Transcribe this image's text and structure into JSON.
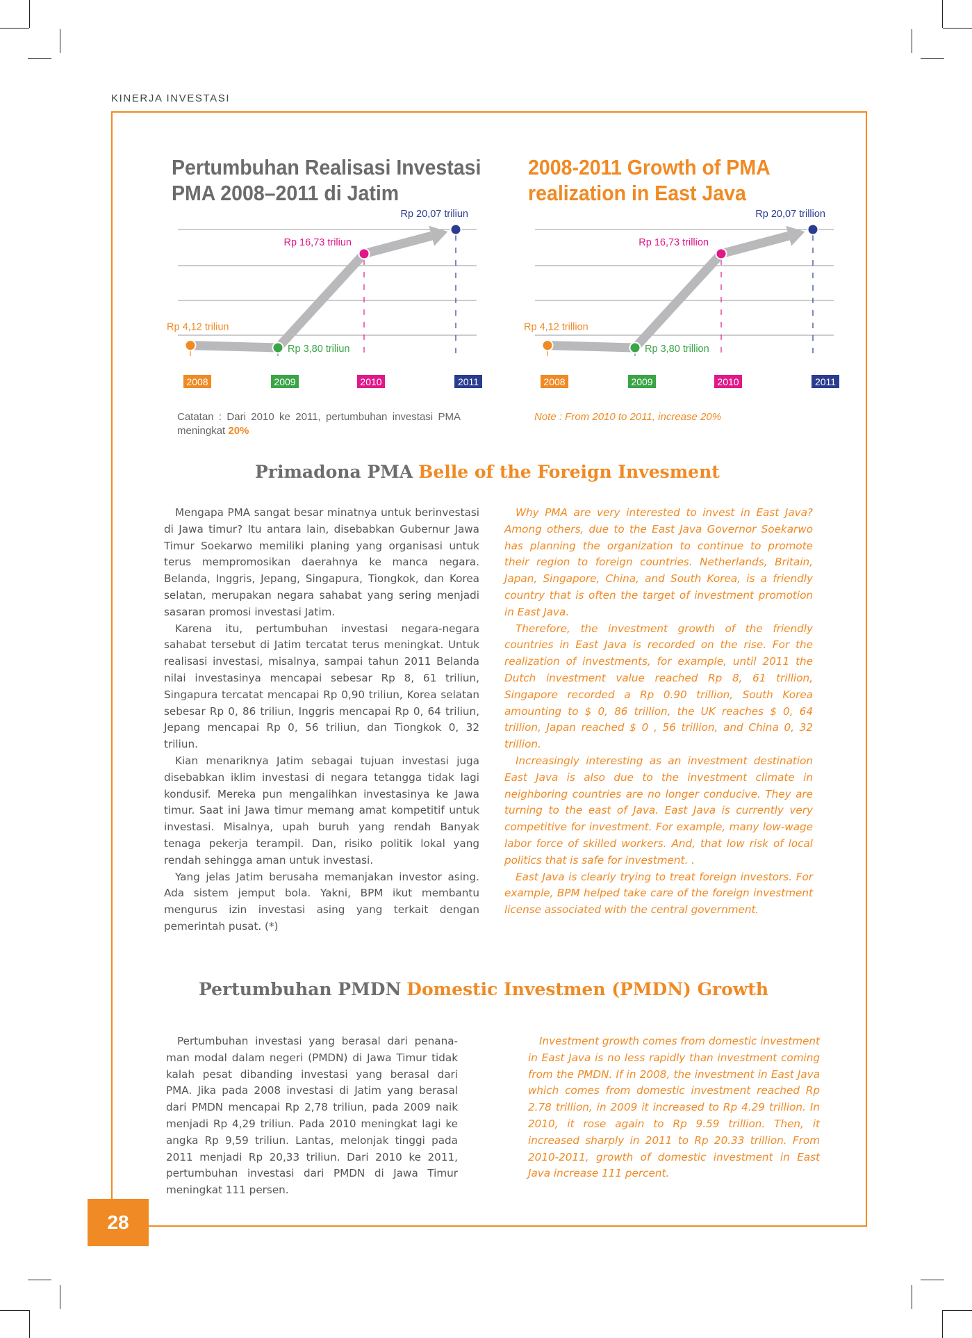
{
  "header": {
    "section_label": "KINERJA INVESTASI",
    "page_number": "28"
  },
  "charts": {
    "id": {
      "title_line1": "Pertumbuhan Realisasi Investasi",
      "title_line2": "PMA 2008–2011 di Jatim",
      "note_prefix": "Catatan : Dari 2010 ke 2011, pertumbuhan investasi PMA meningkat ",
      "note_highlight": "20%"
    },
    "en": {
      "title_line1": "2008-2011 Growth of PMA",
      "title_line2": "realization in East Java",
      "note": "Note : From 2010 to 2011, increase 20%"
    }
  },
  "chart_data": [
    {
      "type": "line",
      "title": "Pertumbuhan Realisasi Investasi PMA 2008–2011 di Jatim",
      "categories": [
        "2008",
        "2009",
        "2010",
        "2011"
      ],
      "values": [
        4.12,
        3.8,
        16.73,
        20.07
      ],
      "data_labels": [
        "Rp 4,12 triliun",
        "Rp 3,80 triliun",
        "Rp 16,73 triliun",
        "Rp 20,07 triliun"
      ],
      "colors": [
        "#f08a24",
        "#3aa546",
        "#e0188a",
        "#2a3c8f"
      ],
      "grid": true
    },
    {
      "type": "line",
      "title": "2008-2011 Growth of PMA realization in East Java",
      "categories": [
        "2008",
        "2009",
        "2010",
        "2011"
      ],
      "values": [
        4.12,
        3.8,
        16.73,
        20.07
      ],
      "data_labels": [
        "Rp 4,12 trillion",
        "Rp 3,80 trillion",
        "Rp 16,73 trillion",
        "Rp 20,07 trillion"
      ],
      "colors": [
        "#f08a24",
        "#3aa546",
        "#e0188a",
        "#2a3c8f"
      ],
      "grid": true
    }
  ],
  "sections": {
    "pma": {
      "title_id": "Primadona PMA",
      "title_en": "Belle of the Foreign Invesment",
      "id_paragraphs": [
        "Mengapa PMA sangat besar minatnya untuk berin­vestasi di Jawa timur? Itu antara lain, disebabkan Guber­nur Jawa Timur Soekarwo memiliki planing yang organ­isasi untuk terus mempromosikan daerahnya ke manca negara. Belanda, Inggris, Jepang, Singapura, Tiongkok, dan Korea selatan, merupakan negara sahabat yang ser­ing menjadi sasaran promosi investasi Jatim.",
        "Karena itu, pertumbuhan investasi negara-negara sahabat tersebut di Jatim tercatat terus meningkat. Untuk realisasi investasi, misalnya, sampai tahun 2011 Belanda nilai investasinya mencapai sebesar Rp 8, 61 triliun, Singapura tercatat mencapai Rp 0,90 triliun, Korea selatan sebesar Rp 0, 86 triliun, Inggris mencapai Rp 0, 64 triliun, Jepang mencapai Rp 0, 56 triliun, dan Tiongkok 0, 32 triliun.",
        "Kian menariknya Jatim sebagai tujuan investasi juga disebabkan iklim investasi di negara tetangga tidak lagi kondusif. Mereka pun mengalihkan investasinya ke Jawa timur. Saat ini Jawa timur memang amat kompetitif untuk investasi. Misalnya, upah buruh yang rendah Banyak tenaga pekerja terampil. Dan, risiko politik lokal yang rendah sehingga aman untuk investasi.",
        "Yang jelas Jatim berusaha memanjakan inves­tor asing. Ada sistem jemput bola. Yakni, BPM ikut membantu mengurus izin investasi asing yang terkait dengan pemerintah pusat. (*)"
      ],
      "en_paragraphs": [
        "Why PMA are very interested to invest in East Java? Among others, due to the East Java Governor Soekarwo has planning the organization to continue to promote their region to foreign countries. Neth­erlands, Britain, Japan, Singapore, China, and South Korea, is a friendly country that is often the target of investment promotion in East Java.",
        "Therefore, the investment growth of the friendly countries in East Java is recorded on the rise. For the realization of investments, for example, until 2011 the Dutch investment value reached Rp 8, 61 trillion, Singapore recorded a Rp 0.90 trillion, South Korea amounting to $ 0, 86 trillion, the UK reaches $ 0, 64 trillion, Japan reached $ 0 , 56 trillion, and China 0, 32 trillion.",
        "Increasingly interesting as an investment destina­tion East Java is also due to the investment climate in neighboring countries are no longer conducive. They are turning to the east of Java. East Java is currently very competitive for investment. For example, many low-wage labor force of skilled workers. And, that low risk of local politics that is safe for investment. .",
        "East Java is clearly trying to treat foreign investors. For example, BPM helped take care of the foreign investment license associated with the central gov­ernment."
      ]
    },
    "pmdn": {
      "title_id": "Pertumbuhan PMDN",
      "title_en": "Domestic Investmen (PMDN) Growth",
      "id_paragraphs": [
        "Pertumbuhan investasi yang berasal dari penana­man modal dalam negeri (PMDN) di Jawa Timur tidak kalah pesat dibanding investasi yang berasal dari PMA. Jika pada 2008 investasi di Jatim yang berasal dari PMDN mencapai Rp 2,78 triliun, pada 2009 naik menjadi Rp 4,29 triliun. Pada 2010 men­ingkat lagi ke angka Rp 9,59 triliun. Lantas, melon­jak tinggi pada 2011 menjadi Rp 20,33 triliun. Dari 2010 ke 2011, pertumbuhan investasi dari PMDN di Jawa Timur meningkat 111 persen."
      ],
      "en_paragraphs": [
        "Investment growth comes from domestic investment in East Java is no less rapidly than investment coming from the PMDN. If in 2008, the investment in East Java which comes from domestic investment reached Rp 2.78 trillion, in 2009 it increased to Rp 4.29 trillion. In 2010, it rose again to Rp 9.59 trillion. Then, it increased sharply in 2011 to Rp 20.33 trillion. From 2010-2011, growth of domestic investment in East Java increase 111 percent."
      ]
    }
  }
}
